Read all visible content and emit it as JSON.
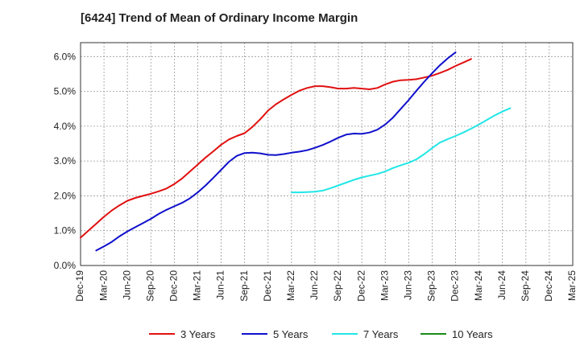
{
  "chart_data": {
    "type": "line",
    "title": "[6424]  Trend of Mean of Ordinary Income Margin",
    "xlabel": "",
    "ylabel": "",
    "x_ticks": [
      "Dec-19",
      "Mar-20",
      "Jun-20",
      "Sep-20",
      "Dec-20",
      "Mar-21",
      "Jun-21",
      "Sep-21",
      "Dec-21",
      "Mar-22",
      "Jun-22",
      "Sep-22",
      "Dec-22",
      "Mar-23",
      "Jun-23",
      "Sep-23",
      "Dec-23",
      "Mar-24",
      "Jun-24",
      "Sep-24",
      "Dec-24",
      "Mar-25"
    ],
    "y_ticks": [
      "0.0%",
      "1.0%",
      "2.0%",
      "3.0%",
      "4.0%",
      "5.0%",
      "6.0%"
    ],
    "ylim": [
      0,
      6.4
    ],
    "grid": true,
    "legend_position": "bottom",
    "series": [
      {
        "name": "3 Years",
        "color": "#e01010",
        "start_index": 0,
        "values": [
          0.8,
          1.0,
          1.2,
          1.4,
          1.58,
          1.73,
          1.86,
          1.94,
          2.0,
          2.06,
          2.13,
          2.21,
          2.34,
          2.5,
          2.7,
          2.9,
          3.1,
          3.28,
          3.47,
          3.62,
          3.72,
          3.8,
          3.98,
          4.2,
          4.45,
          4.63,
          4.77,
          4.9,
          5.02,
          5.1,
          5.15,
          5.15,
          5.12,
          5.08,
          5.08,
          5.1,
          5.08,
          5.06,
          5.1,
          5.2,
          5.28,
          5.32,
          5.33,
          5.35,
          5.4,
          5.45,
          5.53,
          5.62,
          5.73,
          5.83,
          5.93
        ]
      },
      {
        "name": "5 Years",
        "color": "#1010cc",
        "start_index": 2,
        "values": [
          0.43,
          0.55,
          0.68,
          0.84,
          0.98,
          1.1,
          1.22,
          1.34,
          1.48,
          1.6,
          1.7,
          1.8,
          1.93,
          2.1,
          2.3,
          2.52,
          2.75,
          2.98,
          3.15,
          3.23,
          3.24,
          3.22,
          3.18,
          3.17,
          3.2,
          3.24,
          3.27,
          3.31,
          3.38,
          3.46,
          3.56,
          3.67,
          3.76,
          3.79,
          3.78,
          3.82,
          3.9,
          4.05,
          4.25,
          4.5,
          4.75,
          5.02,
          5.28,
          5.52,
          5.75,
          5.95,
          6.12
        ]
      },
      {
        "name": "7 Years",
        "color": "#22e6e6",
        "start_index": 27,
        "values": [
          2.1,
          2.1,
          2.11,
          2.12,
          2.15,
          2.22,
          2.3,
          2.38,
          2.46,
          2.53,
          2.58,
          2.63,
          2.7,
          2.8,
          2.88,
          2.95,
          3.05,
          3.2,
          3.37,
          3.53,
          3.63,
          3.72,
          3.82,
          3.93,
          4.05,
          4.18,
          4.31,
          4.42,
          4.52
        ]
      },
      {
        "name": "10 Years",
        "color": "#1a8a1a",
        "start_index": 0,
        "values": []
      }
    ]
  }
}
